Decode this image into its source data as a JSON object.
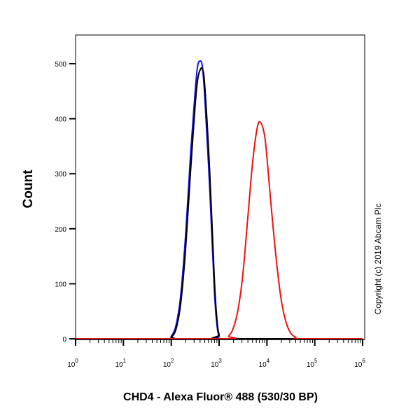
{
  "chart_data": {
    "type": "line",
    "title": "",
    "xlabel": "CHD4 - Alexa Fluor® 488 (530/30 BP)",
    "ylabel": "Count",
    "x_scale": "log",
    "xlim": [
      1,
      1000000
    ],
    "ylim": [
      0,
      550
    ],
    "x_ticks": [
      {
        "base": "10",
        "exp": "0"
      },
      {
        "base": "10",
        "exp": "1"
      },
      {
        "base": "10",
        "exp": "2"
      },
      {
        "base": "10",
        "exp": "3"
      },
      {
        "base": "10",
        "exp": "4"
      },
      {
        "base": "10",
        "exp": "5"
      },
      {
        "base": "10",
        "exp": "6"
      }
    ],
    "y_ticks": [
      "0",
      "100",
      "200",
      "300",
      "400",
      "500"
    ],
    "grid": false,
    "annotation": "Copyright (c) 2019 Abcam Plc",
    "series": [
      {
        "color": "#1010e0",
        "x": [
          1,
          79,
          100,
          126,
          158,
          200,
          251,
          316,
          355,
          398,
          447,
          501,
          631,
          794,
          891,
          1000,
          1259,
          1000000
        ],
        "y": [
          0,
          0,
          5,
          25,
          80,
          190,
          330,
          450,
          495,
          505,
          495,
          440,
          280,
          90,
          30,
          5,
          0,
          0
        ]
      },
      {
        "color": "#000000",
        "x": [
          1,
          79,
          100,
          126,
          158,
          200,
          251,
          316,
          355,
          398,
          447,
          501,
          631,
          794,
          891,
          1000,
          1259,
          1000000
        ],
        "y": [
          0,
          0,
          3,
          18,
          65,
          165,
          300,
          425,
          470,
          488,
          490,
          460,
          310,
          110,
          40,
          8,
          0,
          0
        ]
      },
      {
        "color": "#ee1111",
        "x": [
          1,
          1259,
          1585,
          1995,
          2512,
          3162,
          3981,
          5012,
          6310,
          7413,
          8913,
          10000,
          12589,
          15849,
          19953,
          25119,
          31623,
          39811,
          50119,
          1000000
        ],
        "y": [
          0,
          0,
          5,
          20,
          55,
          120,
          220,
          320,
          385,
          393,
          370,
          330,
          230,
          140,
          70,
          30,
          10,
          3,
          0,
          0
        ]
      }
    ]
  }
}
